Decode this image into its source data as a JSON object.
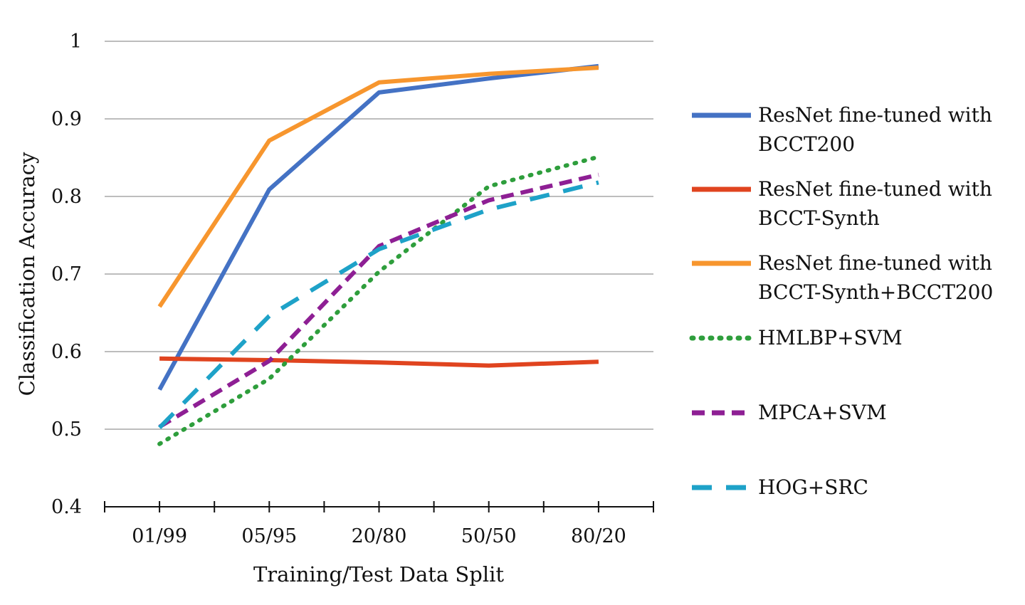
{
  "chart_data": {
    "type": "line",
    "title": "",
    "xlabel": "Training/Test Data Split",
    "ylabel": "Classification Accuracy",
    "categories": [
      "01/99",
      "05/95",
      "20/80",
      "50/50",
      "80/20"
    ],
    "ylim": [
      0.4,
      1.0
    ],
    "yticks": [
      "0.4",
      "0.5",
      "0.6",
      "0.7",
      "0.8",
      "0.9",
      "1"
    ],
    "grid": true,
    "legend_position": "right",
    "series": [
      {
        "name": "ResNet fine-tuned with BCCT200",
        "name_lines": [
          "ResNet fine-tuned with",
          "BCCT200"
        ],
        "values": [
          0.551,
          0.809,
          0.934,
          0.952,
          0.968
        ],
        "color": "#4472c4",
        "dash": "solid"
      },
      {
        "name": "ResNet fine-tuned with BCCT-Synth",
        "name_lines": [
          "ResNet fine-tuned with",
          "BCCT-Synth"
        ],
        "values": [
          0.591,
          0.589,
          0.586,
          0.582,
          0.587
        ],
        "color": "#e0441f",
        "dash": "solid"
      },
      {
        "name": "ResNet fine-tuned with BCCT-Synth+BCCT200",
        "name_lines": [
          "ResNet fine-tuned with",
          "BCCT-Synth+BCCT200"
        ],
        "values": [
          0.658,
          0.872,
          0.947,
          0.958,
          0.966
        ],
        "color": "#f7962e",
        "dash": "solid"
      },
      {
        "name": "HMLBP+SVM",
        "name_lines": [
          "HMLBP+SVM"
        ],
        "values": [
          0.481,
          0.565,
          0.703,
          0.813,
          0.851
        ],
        "color": "#2e9e3c",
        "dash": "dot"
      },
      {
        "name": "MPCA+SVM",
        "name_lines": [
          "MPCA+SVM"
        ],
        "values": [
          0.503,
          0.588,
          0.736,
          0.795,
          0.828
        ],
        "color": "#8e1f94",
        "dash": "dash"
      },
      {
        "name": "HOG+SRC",
        "name_lines": [
          "HOG+SRC"
        ],
        "values": [
          0.502,
          0.646,
          0.732,
          0.783,
          0.818
        ],
        "color": "#1ea2c8",
        "dash": "longdash"
      }
    ]
  }
}
